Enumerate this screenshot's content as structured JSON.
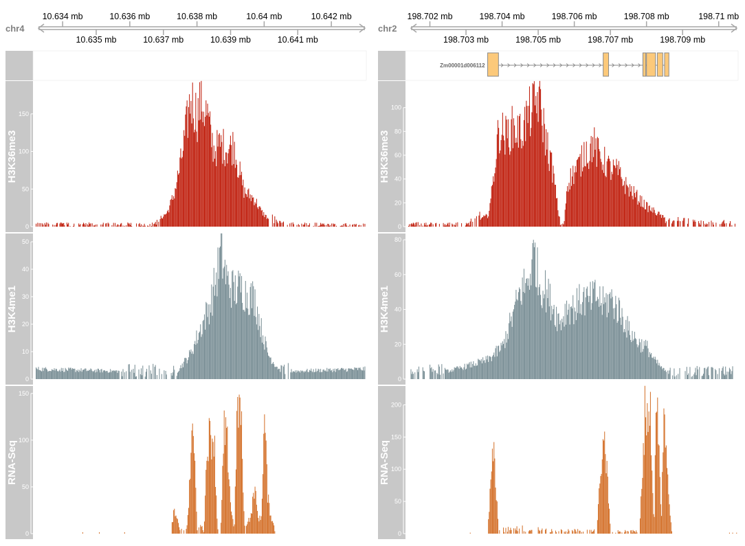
{
  "colors": {
    "axis": "#a6a6a6",
    "panel_title_bg": "#c8c8c8",
    "h3k36me3": "#c0200f",
    "h3k4me1": "#7a8f96",
    "rnaseq": "#d4722c",
    "exon_fill": "#fcc97a",
    "exon_stroke": "#8a8a8a"
  },
  "chart_data": [
    {
      "type": "genome-browser",
      "chromosome": "chr4",
      "xlim": [
        10.6332,
        10.643
      ],
      "genome_axis": {
        "upper_ticks": [
          "10.634 mb",
          "10.636 mb",
          "10.638 mb",
          "10.64 mb",
          "10.642 mb"
        ],
        "upper_tick_values": [
          10.634,
          10.636,
          10.638,
          10.64,
          10.642
        ],
        "lower_ticks": [
          "10.635 mb",
          "10.637 mb",
          "10.639 mb",
          "10.641 mb"
        ],
        "lower_tick_values": [
          10.635,
          10.637,
          10.639,
          10.641
        ]
      },
      "gene_track": {
        "label": "",
        "exons": []
      },
      "tracks": [
        {
          "name": "H3K36me3",
          "type": "area",
          "color": "h3k36me3",
          "ylim": [
            0,
            190
          ],
          "yticks": [
            0,
            50,
            100,
            150
          ],
          "profile": [
            [
              10.6332,
              3
            ],
            [
              10.636,
              3
            ],
            [
              10.6366,
              2
            ],
            [
              10.6368,
              8
            ],
            [
              10.6371,
              20
            ],
            [
              10.6373,
              45
            ],
            [
              10.6375,
              90
            ],
            [
              10.6377,
              150
            ],
            [
              10.6378,
              185
            ],
            [
              10.638,
              160
            ],
            [
              10.6381,
              180
            ],
            [
              10.6383,
              160
            ],
            [
              10.6384,
              130
            ],
            [
              10.6385,
              110
            ],
            [
              10.6387,
              118
            ],
            [
              10.6389,
              112
            ],
            [
              10.6391,
              118
            ],
            [
              10.6392,
              90
            ],
            [
              10.6394,
              50
            ],
            [
              10.6397,
              40
            ],
            [
              10.6399,
              22
            ],
            [
              10.6401,
              12
            ],
            [
              10.6403,
              8
            ],
            [
              10.6406,
              3
            ],
            [
              10.643,
              3
            ]
          ]
        },
        {
          "name": "H3K4me1",
          "type": "area",
          "color": "h3k4me1",
          "ylim": [
            0,
            52
          ],
          "yticks": [
            0,
            10,
            20,
            30,
            40,
            50
          ],
          "profile": [
            [
              10.6332,
              4
            ],
            [
              10.636,
              3
            ],
            [
              10.6374,
              3
            ],
            [
              10.6378,
              10
            ],
            [
              10.6381,
              20
            ],
            [
              10.6384,
              30
            ],
            [
              10.6386,
              42
            ],
            [
              10.6387,
              50
            ],
            [
              10.6389,
              38
            ],
            [
              10.6391,
              35
            ],
            [
              10.6393,
              36
            ],
            [
              10.6395,
              33
            ],
            [
              10.6397,
              32
            ],
            [
              10.6399,
              20
            ],
            [
              10.6401,
              10
            ],
            [
              10.6403,
              6
            ],
            [
              10.6405,
              3
            ],
            [
              10.643,
              4
            ]
          ]
        },
        {
          "name": "RNA-Seq",
          "type": "area",
          "color": "rnaseq",
          "ylim": [
            0,
            155
          ],
          "yticks": [
            0,
            50,
            100,
            150
          ],
          "profile": [
            [
              10.6332,
              0
            ],
            [
              10.6372,
              0
            ],
            [
              10.6373,
              25
            ],
            [
              10.6375,
              5
            ],
            [
              10.6377,
              5
            ],
            [
              10.6378,
              85
            ],
            [
              10.6379,
              120
            ],
            [
              10.638,
              5
            ],
            [
              10.6382,
              5
            ],
            [
              10.6383,
              110
            ],
            [
              10.6385,
              115
            ],
            [
              10.6386,
              5
            ],
            [
              10.6387,
              5
            ],
            [
              10.6388,
              118
            ],
            [
              10.6389,
              100
            ],
            [
              10.639,
              30
            ],
            [
              10.6391,
              5
            ],
            [
              10.6392,
              150
            ],
            [
              10.6393,
              140
            ],
            [
              10.6394,
              5
            ],
            [
              10.6395,
              15
            ],
            [
              10.6396,
              20
            ],
            [
              10.6397,
              55
            ],
            [
              10.6398,
              20
            ],
            [
              10.6399,
              15
            ],
            [
              10.64,
              135
            ],
            [
              10.6401,
              40
            ],
            [
              10.6402,
              20
            ],
            [
              10.6403,
              5
            ],
            [
              10.6404,
              0
            ],
            [
              10.643,
              0
            ]
          ]
        }
      ]
    },
    {
      "type": "genome-browser",
      "chromosome": "chr2",
      "xlim": [
        198.7014,
        198.7105
      ],
      "genome_axis": {
        "upper_ticks": [
          "198.702 mb",
          "198.704 mb",
          "198.706 mb",
          "198.708 mb",
          "198.71 mb"
        ],
        "upper_tick_values": [
          198.702,
          198.704,
          198.706,
          198.708,
          198.71
        ],
        "lower_ticks": [
          "198.703 mb",
          "198.705 mb",
          "198.707 mb",
          "198.709 mb"
        ],
        "lower_tick_values": [
          198.703,
          198.705,
          198.707,
          198.709
        ]
      },
      "gene_track": {
        "label": "Zm00001d006112",
        "exons": [
          [
            198.7036,
            198.7039
          ],
          [
            198.7068,
            198.70695
          ],
          [
            198.7079,
            198.70798
          ],
          [
            198.708,
            198.70825
          ],
          [
            198.7083,
            198.70845
          ],
          [
            198.7085,
            198.70862
          ]
        ]
      },
      "tracks": [
        {
          "name": "H3K36me3",
          "type": "area",
          "color": "h3k36me3",
          "ylim": [
            0,
            120
          ],
          "yticks": [
            0,
            20,
            40,
            60,
            80,
            100
          ],
          "profile": [
            [
              198.7014,
              2
            ],
            [
              198.703,
              2
            ],
            [
              198.7036,
              10
            ],
            [
              198.7037,
              30
            ],
            [
              198.7038,
              60
            ],
            [
              198.7039,
              88
            ],
            [
              198.7041,
              82
            ],
            [
              198.7043,
              90
            ],
            [
              198.7045,
              85
            ],
            [
              198.7047,
              100
            ],
            [
              198.7049,
              110
            ],
            [
              198.705,
              118
            ],
            [
              198.7051,
              100
            ],
            [
              198.7052,
              80
            ],
            [
              198.7053,
              65
            ],
            [
              198.7054,
              50
            ],
            [
              198.7055,
              25
            ],
            [
              198.7056,
              2
            ],
            [
              198.7057,
              2
            ],
            [
              198.7058,
              40
            ],
            [
              198.706,
              50
            ],
            [
              198.7062,
              60
            ],
            [
              198.7063,
              72
            ],
            [
              198.7064,
              65
            ],
            [
              198.7065,
              78
            ],
            [
              198.7066,
              68
            ],
            [
              198.7068,
              60
            ],
            [
              198.707,
              52
            ],
            [
              198.7072,
              50
            ],
            [
              198.7074,
              38
            ],
            [
              198.7077,
              28
            ],
            [
              198.708,
              18
            ],
            [
              198.7083,
              12
            ],
            [
              198.7086,
              5
            ],
            [
              198.709,
              4
            ],
            [
              198.7095,
              3
            ],
            [
              198.7105,
              3
            ]
          ]
        },
        {
          "name": "H3K4me1",
          "type": "area",
          "color": "h3k4me1",
          "ylim": [
            0,
            82
          ],
          "yticks": [
            0,
            20,
            40,
            60,
            80
          ],
          "profile": [
            [
              198.7014,
              4
            ],
            [
              198.7025,
              5
            ],
            [
              198.703,
              8
            ],
            [
              198.7036,
              12
            ],
            [
              198.704,
              20
            ],
            [
              198.7043,
              40
            ],
            [
              198.7045,
              55
            ],
            [
              198.7047,
              60
            ],
            [
              198.7049,
              80
            ],
            [
              198.705,
              60
            ],
            [
              198.7052,
              55
            ],
            [
              198.7054,
              45
            ],
            [
              198.7056,
              35
            ],
            [
              198.7058,
              45
            ],
            [
              198.706,
              44
            ],
            [
              198.7062,
              50
            ],
            [
              198.7064,
              48
            ],
            [
              198.7066,
              52
            ],
            [
              198.7068,
              46
            ],
            [
              198.707,
              50
            ],
            [
              198.7073,
              40
            ],
            [
              198.7075,
              30
            ],
            [
              198.7078,
              22
            ],
            [
              198.708,
              20
            ],
            [
              198.7082,
              12
            ],
            [
              198.7085,
              5
            ],
            [
              198.709,
              4
            ],
            [
              198.7105,
              4
            ]
          ]
        },
        {
          "name": "RNA-Seq",
          "type": "area",
          "color": "rnaseq",
          "ylim": [
            0,
            225
          ],
          "yticks": [
            0,
            50,
            100,
            150,
            200
          ],
          "profile": [
            [
              198.7014,
              0
            ],
            [
              198.7036,
              0
            ],
            [
              198.70365,
              60
            ],
            [
              198.70375,
              140
            ],
            [
              198.7039,
              5
            ],
            [
              198.705,
              8
            ],
            [
              198.7055,
              4
            ],
            [
              198.706,
              4
            ],
            [
              198.7066,
              4
            ],
            [
              198.70675,
              120
            ],
            [
              198.70685,
              145
            ],
            [
              198.707,
              3
            ],
            [
              198.7078,
              3
            ],
            [
              198.70795,
              210
            ],
            [
              198.7081,
              200
            ],
            [
              198.7082,
              5
            ],
            [
              198.70825,
              180
            ],
            [
              198.7083,
              215
            ],
            [
              198.7084,
              10
            ],
            [
              198.70845,
              170
            ],
            [
              198.7085,
              200
            ],
            [
              198.7086,
              60
            ],
            [
              198.7087,
              0
            ],
            [
              198.7105,
              0
            ]
          ]
        }
      ]
    }
  ]
}
